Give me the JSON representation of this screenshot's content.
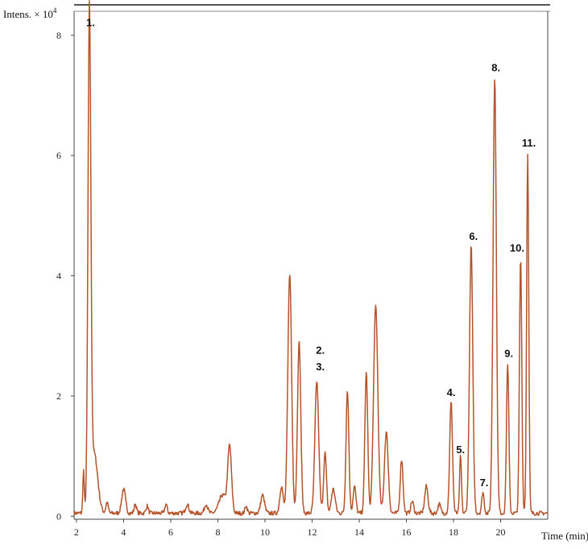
{
  "chart_data": {
    "type": "line",
    "title": "",
    "ylabel": "Intens. × 10",
    "ylabel_exponent": "4",
    "xlabel": "Time (min)",
    "xlim": [
      1.9,
      22.0
    ],
    "ylim": [
      -0.05,
      8.4
    ],
    "x_ticks": [
      2,
      4,
      6,
      8,
      10,
      12,
      14,
      16,
      18,
      20
    ],
    "y_ticks": [
      0,
      2,
      4,
      6,
      8
    ],
    "grid": false,
    "line_color": "#b5532a",
    "baseline": 0.05,
    "peaks": [
      {
        "x": 2.3,
        "y": 0.7,
        "w": 0.03
      },
      {
        "x": 2.55,
        "y": 8.1,
        "w": 0.06
      },
      {
        "x": 2.75,
        "y": 1.0,
        "w": 0.15
      },
      {
        "x": 3.3,
        "y": 0.18,
        "w": 0.05
      },
      {
        "x": 4.0,
        "y": 0.4,
        "w": 0.08
      },
      {
        "x": 4.5,
        "y": 0.15,
        "w": 0.05
      },
      {
        "x": 5.0,
        "y": 0.12,
        "w": 0.05
      },
      {
        "x": 5.8,
        "y": 0.15,
        "w": 0.05
      },
      {
        "x": 6.7,
        "y": 0.15,
        "w": 0.07
      },
      {
        "x": 7.5,
        "y": 0.15,
        "w": 0.07
      },
      {
        "x": 8.2,
        "y": 0.3,
        "w": 0.15
      },
      {
        "x": 8.5,
        "y": 1.1,
        "w": 0.08
      },
      {
        "x": 9.2,
        "y": 0.12,
        "w": 0.05
      },
      {
        "x": 9.9,
        "y": 0.3,
        "w": 0.08
      },
      {
        "x": 10.7,
        "y": 0.45,
        "w": 0.07
      },
      {
        "x": 11.05,
        "y": 4.0,
        "w": 0.08
      },
      {
        "x": 11.45,
        "y": 2.85,
        "w": 0.07
      },
      {
        "x": 12.2,
        "y": 2.2,
        "w": 0.08
      },
      {
        "x": 12.55,
        "y": 1.0,
        "w": 0.06
      },
      {
        "x": 12.9,
        "y": 0.4,
        "w": 0.08
      },
      {
        "x": 13.5,
        "y": 2.05,
        "w": 0.06
      },
      {
        "x": 13.8,
        "y": 0.45,
        "w": 0.06
      },
      {
        "x": 14.3,
        "y": 2.35,
        "w": 0.06
      },
      {
        "x": 14.7,
        "y": 3.45,
        "w": 0.09
      },
      {
        "x": 15.15,
        "y": 1.35,
        "w": 0.08
      },
      {
        "x": 15.8,
        "y": 0.9,
        "w": 0.06
      },
      {
        "x": 16.25,
        "y": 0.2,
        "w": 0.06
      },
      {
        "x": 16.85,
        "y": 0.45,
        "w": 0.07
      },
      {
        "x": 17.4,
        "y": 0.15,
        "w": 0.06
      },
      {
        "x": 17.9,
        "y": 1.85,
        "w": 0.06
      },
      {
        "x": 18.3,
        "y": 0.95,
        "w": 0.04
      },
      {
        "x": 18.75,
        "y": 4.45,
        "w": 0.07
      },
      {
        "x": 19.25,
        "y": 0.35,
        "w": 0.05
      },
      {
        "x": 19.75,
        "y": 7.25,
        "w": 0.07
      },
      {
        "x": 20.3,
        "y": 2.5,
        "w": 0.05
      },
      {
        "x": 20.85,
        "y": 4.25,
        "w": 0.05
      },
      {
        "x": 21.15,
        "y": 6.0,
        "w": 0.045
      }
    ],
    "annotations": [
      {
        "text": "1.",
        "x": 2.6,
        "y": 8.15
      },
      {
        "text": "2.",
        "x": 12.35,
        "y": 2.7
      },
      {
        "text": "3.",
        "x": 12.35,
        "y": 2.43
      },
      {
        "text": "4.",
        "x": 17.9,
        "y": 2.0
      },
      {
        "text": "5.",
        "x": 18.3,
        "y": 1.05
      },
      {
        "text": "6.",
        "x": 18.85,
        "y": 4.6
      },
      {
        "text": "7.",
        "x": 19.3,
        "y": 0.5
      },
      {
        "text": "8.",
        "x": 19.8,
        "y": 7.4
      },
      {
        "text": "9.",
        "x": 20.35,
        "y": 2.65
      },
      {
        "text": "10.",
        "x": 20.7,
        "y": 4.4
      },
      {
        "text": "11.",
        "x": 21.2,
        "y": 6.15
      }
    ]
  }
}
